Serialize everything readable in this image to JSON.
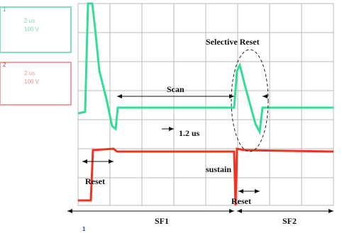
{
  "channels": [
    {
      "number": "1",
      "scale": "2 us",
      "volts": "100 V"
    },
    {
      "number": "2",
      "scale": "2 us",
      "volts": "100 V"
    }
  ],
  "annotations": {
    "selective_reset": "Selective Reset",
    "scan": "Scan",
    "interval": "1.2 us",
    "sustain": "sustain",
    "reset_1": "Reset",
    "reset_2": "Reset",
    "sf1": "SF1",
    "sf2": "SF2"
  },
  "marker": "1"
}
